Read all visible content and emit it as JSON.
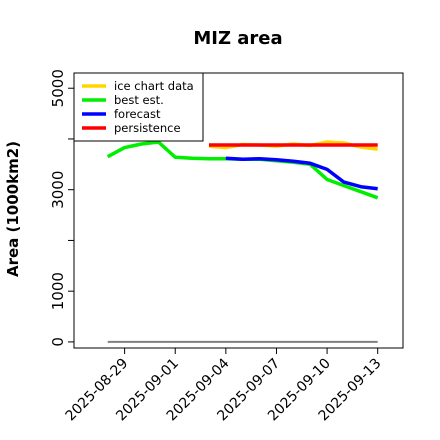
{
  "chart_data": {
    "type": "line",
    "title": "MIZ area",
    "xlabel": "",
    "ylabel": "Area (1000km2)",
    "ylim": [
      -120,
      5300
    ],
    "xlim": [
      "2025-08-26T00:00",
      "2025-09-14T12:00"
    ],
    "grid": false,
    "legend_position": "top-left",
    "x_ticks": [
      "2025-08-29",
      "2025-09-01",
      "2025-09-04",
      "2025-09-07",
      "2025-09-10",
      "2025-09-13"
    ],
    "x_tick_colors": [
      "#000000",
      "#000000",
      "#228B22",
      "#000000",
      "#000000",
      "#000000"
    ],
    "y_ticks": [
      0,
      1000,
      3000,
      5000
    ],
    "y_minor_ticks": [
      2000,
      4000
    ],
    "baseline": {
      "x": [
        "2025-08-28",
        "2025-09-13"
      ],
      "y": [
        0,
        0
      ],
      "color": "#808080"
    },
    "series": [
      {
        "name": "ice chart data",
        "color": "#FFD700",
        "x": [
          "2025-09-03",
          "2025-09-04",
          "2025-09-05",
          "2025-09-06",
          "2025-09-07",
          "2025-09-08",
          "2025-09-09",
          "2025-09-10",
          "2025-09-11",
          "2025-09-12",
          "2025-09-13"
        ],
        "y": [
          3860,
          3830,
          3890,
          3880,
          3860,
          3900,
          3870,
          3940,
          3920,
          3840,
          3800
        ]
      },
      {
        "name": "best est.",
        "color": "#00EE00",
        "x": [
          "2025-08-28",
          "2025-08-29",
          "2025-08-30",
          "2025-08-31",
          "2025-09-01",
          "2025-09-02",
          "2025-09-03",
          "2025-09-04",
          "2025-09-05",
          "2025-09-06",
          "2025-09-07",
          "2025-09-08",
          "2025-09-09",
          "2025-09-10",
          "2025-09-11",
          "2025-09-12",
          "2025-09-13"
        ],
        "y": [
          3650,
          3830,
          3900,
          3940,
          3640,
          3620,
          3610,
          3610,
          3600,
          3600,
          3570,
          3540,
          3500,
          3200,
          3080,
          2960,
          2840
        ]
      },
      {
        "name": "forecast",
        "color": "#0000FF",
        "x": [
          "2025-09-04",
          "2025-09-05",
          "2025-09-06",
          "2025-09-07",
          "2025-09-08",
          "2025-09-09",
          "2025-09-10",
          "2025-09-11",
          "2025-09-12",
          "2025-09-13"
        ],
        "y": [
          3620,
          3600,
          3610,
          3590,
          3560,
          3520,
          3400,
          3150,
          3060,
          3020
        ]
      },
      {
        "name": "persistence",
        "color": "#FF0000",
        "x": [
          "2025-09-03",
          "2025-09-13"
        ],
        "y": [
          3880,
          3880
        ]
      }
    ]
  }
}
